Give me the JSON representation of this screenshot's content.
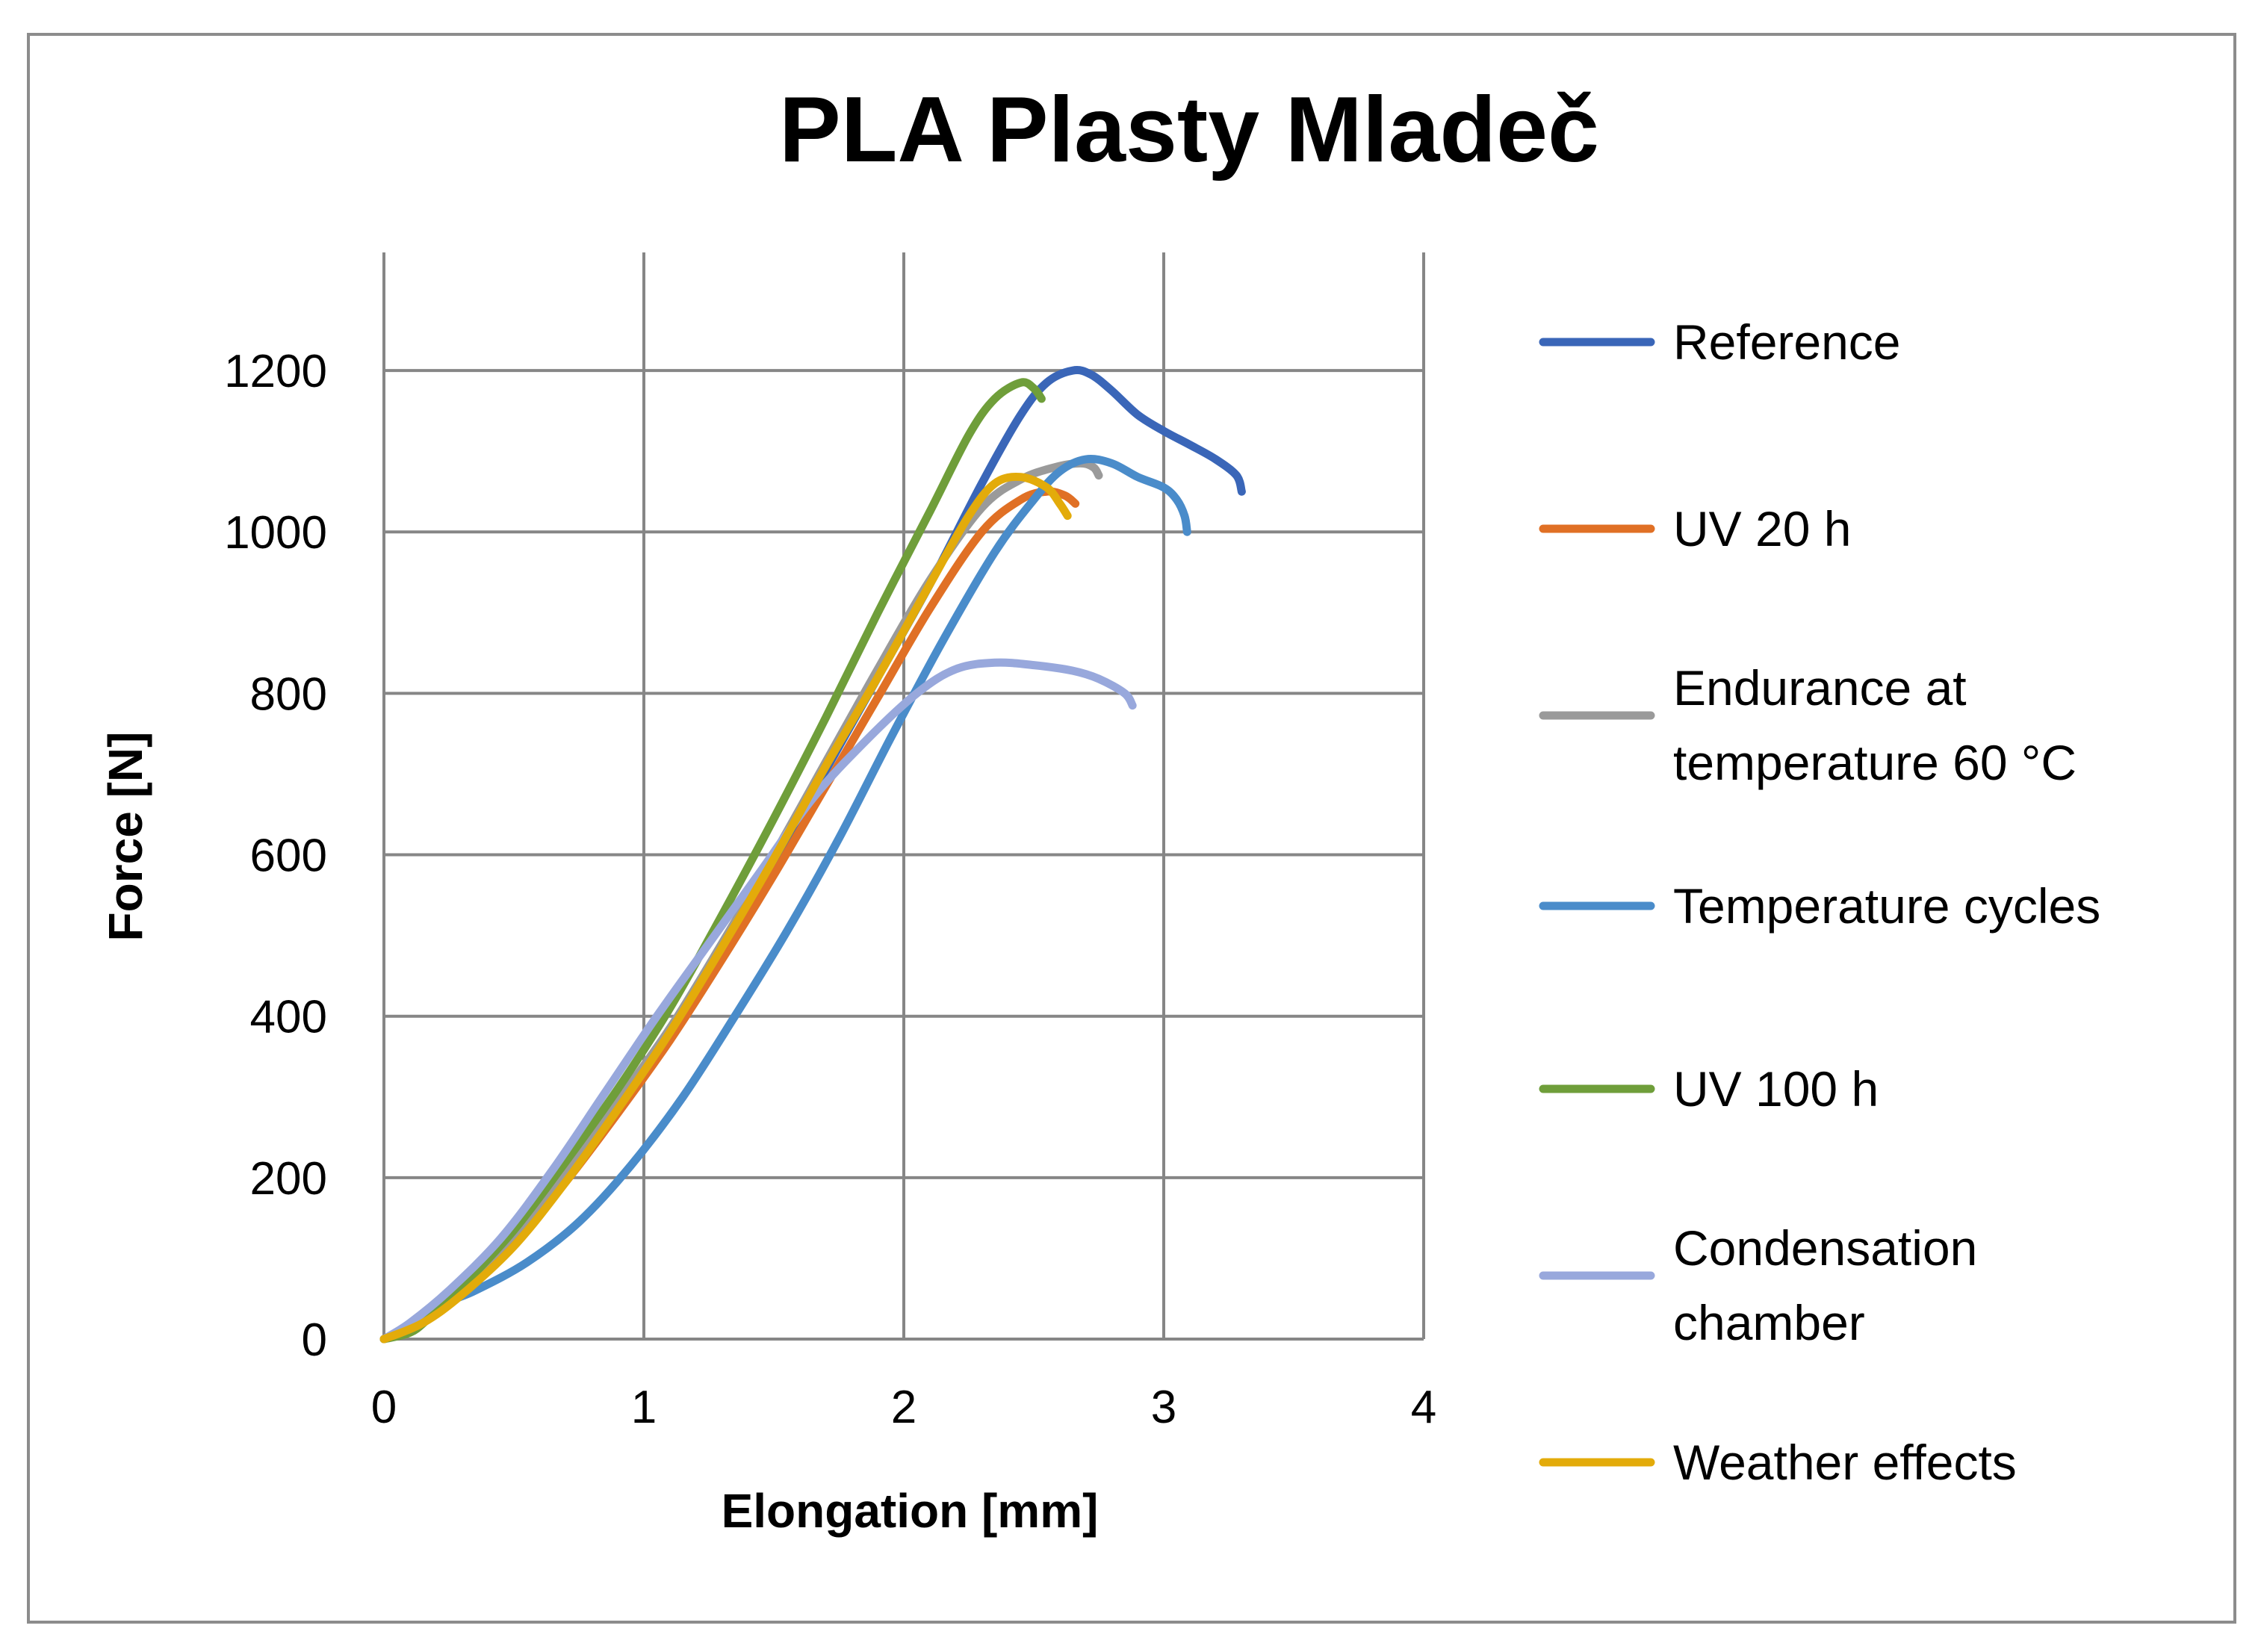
{
  "chart_data": {
    "type": "line",
    "title": "PLA Plasty Mladeč",
    "xlabel": "Elongation [mm]",
    "ylabel": "Force [N]",
    "xlim": [
      0,
      4
    ],
    "ylim": [
      0,
      1300
    ],
    "xticks": [
      0,
      1,
      2,
      3,
      4
    ],
    "yticks": [
      0,
      200,
      400,
      600,
      800,
      1000,
      1200
    ],
    "grid": true,
    "legend_position": "right",
    "series": [
      {
        "name": "Reference",
        "color": "#3a66b8",
        "points": [
          [
            0,
            0
          ],
          [
            0.15,
            25
          ],
          [
            0.3,
            60
          ],
          [
            0.5,
            120
          ],
          [
            0.7,
            200
          ],
          [
            0.9,
            285
          ],
          [
            1.1,
            375
          ],
          [
            1.3,
            480
          ],
          [
            1.5,
            590
          ],
          [
            1.7,
            705
          ],
          [
            1.9,
            820
          ],
          [
            2.1,
            935
          ],
          [
            2.3,
            1060
          ],
          [
            2.45,
            1145
          ],
          [
            2.55,
            1185
          ],
          [
            2.65,
            1200
          ],
          [
            2.72,
            1195
          ],
          [
            2.8,
            1175
          ],
          [
            2.9,
            1145
          ],
          [
            3.0,
            1125
          ],
          [
            3.1,
            1108
          ],
          [
            3.2,
            1090
          ],
          [
            3.28,
            1070
          ],
          [
            3.3,
            1050
          ]
        ]
      },
      {
        "name": "UV 20 h",
        "color": "#e07025",
        "points": [
          [
            0,
            0
          ],
          [
            0.15,
            22
          ],
          [
            0.3,
            58
          ],
          [
            0.5,
            118
          ],
          [
            0.7,
            195
          ],
          [
            0.9,
            280
          ],
          [
            1.1,
            370
          ],
          [
            1.3,
            470
          ],
          [
            1.5,
            575
          ],
          [
            1.7,
            685
          ],
          [
            1.9,
            795
          ],
          [
            2.1,
            905
          ],
          [
            2.3,
            1000
          ],
          [
            2.45,
            1040
          ],
          [
            2.55,
            1050
          ],
          [
            2.62,
            1045
          ],
          [
            2.66,
            1035
          ]
        ]
      },
      {
        "name": "Endurance at temperature 60 °C",
        "color": "#9a9a9a",
        "points": [
          [
            0,
            0
          ],
          [
            0.15,
            25
          ],
          [
            0.3,
            65
          ],
          [
            0.5,
            130
          ],
          [
            0.7,
            210
          ],
          [
            0.9,
            295
          ],
          [
            1.1,
            385
          ],
          [
            1.3,
            490
          ],
          [
            1.5,
            600
          ],
          [
            1.7,
            715
          ],
          [
            1.9,
            830
          ],
          [
            2.1,
            940
          ],
          [
            2.3,
            1030
          ],
          [
            2.45,
            1065
          ],
          [
            2.58,
            1080
          ],
          [
            2.68,
            1085
          ],
          [
            2.73,
            1080
          ],
          [
            2.75,
            1070
          ]
        ]
      },
      {
        "name": "Temperature cycles",
        "color": "#4a8cca",
        "points": [
          [
            0,
            0
          ],
          [
            0.1,
            15
          ],
          [
            0.2,
            40
          ],
          [
            0.35,
            60
          ],
          [
            0.55,
            95
          ],
          [
            0.75,
            145
          ],
          [
            0.95,
            215
          ],
          [
            1.15,
            300
          ],
          [
            1.35,
            400
          ],
          [
            1.55,
            505
          ],
          [
            1.75,
            620
          ],
          [
            1.95,
            745
          ],
          [
            2.15,
            865
          ],
          [
            2.35,
            975
          ],
          [
            2.5,
            1040
          ],
          [
            2.6,
            1075
          ],
          [
            2.7,
            1090
          ],
          [
            2.8,
            1085
          ],
          [
            2.9,
            1068
          ],
          [
            3.0,
            1055
          ],
          [
            3.05,
            1040
          ],
          [
            3.08,
            1020
          ],
          [
            3.09,
            1000
          ]
        ]
      },
      {
        "name": "UV 100 h",
        "color": "#6f9e3a",
        "points": [
          [
            0,
            0
          ],
          [
            0.1,
            8
          ],
          [
            0.17,
            25
          ],
          [
            0.3,
            65
          ],
          [
            0.5,
            135
          ],
          [
            0.7,
            220
          ],
          [
            0.9,
            310
          ],
          [
            1.1,
            410
          ],
          [
            1.3,
            525
          ],
          [
            1.5,
            645
          ],
          [
            1.7,
            770
          ],
          [
            1.9,
            900
          ],
          [
            2.1,
            1025
          ],
          [
            2.25,
            1120
          ],
          [
            2.35,
            1165
          ],
          [
            2.45,
            1185
          ],
          [
            2.5,
            1178
          ],
          [
            2.53,
            1165
          ]
        ]
      },
      {
        "name": "Condensation chamber",
        "color": "#98a8dc",
        "points": [
          [
            0,
            0
          ],
          [
            0.1,
            20
          ],
          [
            0.25,
            60
          ],
          [
            0.45,
            125
          ],
          [
            0.65,
            210
          ],
          [
            0.85,
            305
          ],
          [
            1.05,
            400
          ],
          [
            1.25,
            490
          ],
          [
            1.45,
            580
          ],
          [
            1.65,
            670
          ],
          [
            1.85,
            740
          ],
          [
            2.05,
            800
          ],
          [
            2.2,
            830
          ],
          [
            2.35,
            838
          ],
          [
            2.5,
            835
          ],
          [
            2.65,
            828
          ],
          [
            2.75,
            818
          ],
          [
            2.85,
            800
          ],
          [
            2.88,
            785
          ]
        ]
      },
      {
        "name": "Weather effects",
        "color": "#e3ab0a",
        "points": [
          [
            0,
            0
          ],
          [
            0.15,
            20
          ],
          [
            0.3,
            55
          ],
          [
            0.5,
            115
          ],
          [
            0.7,
            195
          ],
          [
            0.9,
            285
          ],
          [
            1.1,
            380
          ],
          [
            1.3,
            485
          ],
          [
            1.5,
            595
          ],
          [
            1.7,
            710
          ],
          [
            1.9,
            820
          ],
          [
            2.1,
            935
          ],
          [
            2.25,
            1020
          ],
          [
            2.35,
            1060
          ],
          [
            2.45,
            1068
          ],
          [
            2.55,
            1055
          ],
          [
            2.6,
            1035
          ],
          [
            2.63,
            1020
          ]
        ]
      }
    ]
  }
}
